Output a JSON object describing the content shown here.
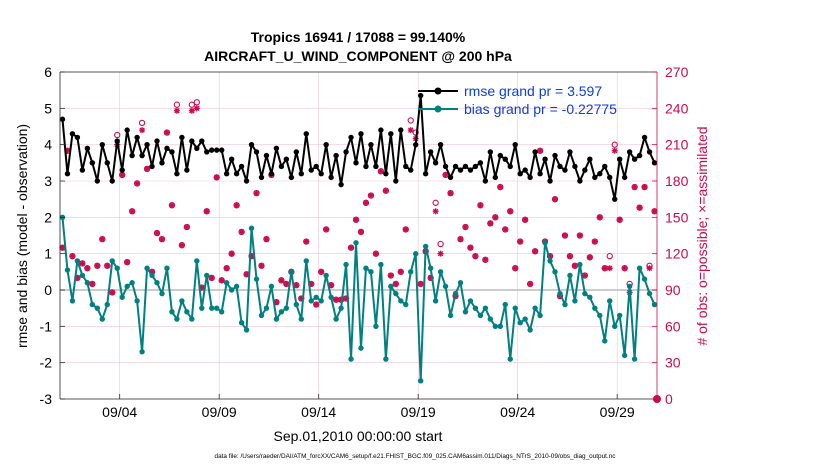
{
  "chart_data": {
    "type": "line",
    "title_line1": "Tropics 16941 / 17088 = 99.140%",
    "title_line2": "AIRCRAFT_U_WIND_COMPONENT @ 200 hPa",
    "xlabel": "Sep.01,2010 00:00:00 start",
    "ylabel_left": "rmse and bias (model - observation)",
    "ylabel_right": "# of obs: o=possible; ×=assimilated",
    "footer": "data file: /Users/raeder/DAI/ATM_forcXX/CAM6_setup/f.e21.FHIST_BGC.f09_025.CAM6assim.011/Diags_NTrS_2010-09/obs_diag_output.nc",
    "xlim": [
      0.5,
      30.5
    ],
    "ylim_left": [
      -3,
      6
    ],
    "ylim_right": [
      0,
      270
    ],
    "x_ticks": [
      3.5,
      8.5,
      13.5,
      18.5,
      23.5,
      28.5
    ],
    "x_tick_labels": [
      "09/04",
      "09/09",
      "09/14",
      "09/19",
      "09/24",
      "09/29"
    ],
    "y_ticks_left": [
      -3,
      -2,
      -1,
      0,
      1,
      2,
      3,
      4,
      5,
      6
    ],
    "y_tick_labels_left": [
      "-3",
      "-2",
      "-1",
      "0",
      "1",
      "2",
      "3",
      "4",
      "5",
      "6"
    ],
    "y_ticks_right": [
      0,
      30,
      60,
      90,
      120,
      150,
      180,
      210,
      240,
      270
    ],
    "y_tick_labels_right": [
      "0",
      "30",
      "60",
      "90",
      "120",
      "150",
      "180",
      "210",
      "240",
      "270"
    ],
    "series": [
      {
        "name": "rmse grand pr = 3.597",
        "color": "#000000",
        "x": [
          0.625,
          0.875,
          1.125,
          1.375,
          1.625,
          1.875,
          2.125,
          2.375,
          2.625,
          2.875,
          3.125,
          3.375,
          3.625,
          3.875,
          4.125,
          4.375,
          4.625,
          4.875,
          5.125,
          5.375,
          5.625,
          5.875,
          6.125,
          6.375,
          6.625,
          6.875,
          7.125,
          7.375,
          7.625,
          7.875,
          8.125,
          8.375,
          8.625,
          8.875,
          9.125,
          9.375,
          9.625,
          9.875,
          10.125,
          10.375,
          10.625,
          10.875,
          11.125,
          11.375,
          11.625,
          11.875,
          12.125,
          12.375,
          12.625,
          12.875,
          13.125,
          13.375,
          13.625,
          13.875,
          14.125,
          14.375,
          14.625,
          14.875,
          15.125,
          15.375,
          15.625,
          15.875,
          16.125,
          16.375,
          16.625,
          16.875,
          17.125,
          17.375,
          17.625,
          17.875,
          18.125,
          18.375,
          18.625,
          18.875,
          19.125,
          19.375,
          19.625,
          19.875,
          20.125,
          20.375,
          20.625,
          20.875,
          21.125,
          21.375,
          21.625,
          21.875,
          22.125,
          22.375,
          22.625,
          22.875,
          23.125,
          23.375,
          23.625,
          23.875,
          24.125,
          24.375,
          24.625,
          24.875,
          25.125,
          25.375,
          25.625,
          25.875,
          26.125,
          26.375,
          26.625,
          26.875,
          27.125,
          27.375,
          27.625,
          27.875,
          28.125,
          28.375,
          28.625,
          28.875,
          29.125,
          29.375,
          29.625,
          29.875,
          30.125,
          30.375
        ],
        "values": [
          4.7,
          3.2,
          4.3,
          4.2,
          3.3,
          3.9,
          3.5,
          3.0,
          4.0,
          3.5,
          3.0,
          4.1,
          3.3,
          4.4,
          3.7,
          4.2,
          3.7,
          4.0,
          3.4,
          4.1,
          3.5,
          3.9,
          3.8,
          3.2,
          4.2,
          3.3,
          4.1,
          3.9,
          4.1,
          3.8,
          3.85,
          3.85,
          3.85,
          3.2,
          3.6,
          3.2,
          3.4,
          3.0,
          4.0,
          3.8,
          3.1,
          3.7,
          3.2,
          3.9,
          3.4,
          3.6,
          3.1,
          3.8,
          3.2,
          4.3,
          3.3,
          3.4,
          3.2,
          4.0,
          3.1,
          3.7,
          2.9,
          3.8,
          4.2,
          3.5,
          4.3,
          3.4,
          4.0,
          3.4,
          4.4,
          3.2,
          4.3,
          3.0,
          4.4,
          3.4,
          3.3,
          4.0,
          5.35,
          3.2,
          3.8,
          3.5,
          4.0,
          3.4,
          3.1,
          3.4,
          3.3,
          3.4,
          3.3,
          3.4,
          3.5,
          3.0,
          3.8,
          3.1,
          3.7,
          3.6,
          3.4,
          4.0,
          3.2,
          3.3,
          3.1,
          3.8,
          3.2,
          3.6,
          3.0,
          3.7,
          3.4,
          3.3,
          3.8,
          3.4,
          3.0,
          3.3,
          3.6,
          3.1,
          3.2,
          3.4,
          3.1,
          2.5,
          3.6,
          3.1,
          3.8,
          3.6,
          3.7,
          4.2,
          3.8,
          3.5
        ]
      },
      {
        "name": "bias grand pr = -0.22775",
        "color": "#008080",
        "x": [
          0.625,
          0.875,
          1.125,
          1.375,
          1.625,
          1.875,
          2.125,
          2.375,
          2.625,
          2.875,
          3.125,
          3.375,
          3.625,
          3.875,
          4.125,
          4.375,
          4.625,
          4.875,
          5.125,
          5.375,
          5.625,
          5.875,
          6.125,
          6.375,
          6.625,
          6.875,
          7.125,
          7.375,
          7.625,
          7.875,
          8.125,
          8.375,
          8.625,
          8.875,
          9.125,
          9.375,
          9.625,
          9.875,
          10.125,
          10.375,
          10.625,
          10.875,
          11.125,
          11.375,
          11.625,
          11.875,
          12.125,
          12.375,
          12.625,
          12.875,
          13.125,
          13.375,
          13.625,
          13.875,
          14.125,
          14.375,
          14.625,
          14.875,
          15.125,
          15.375,
          15.625,
          15.875,
          16.125,
          16.375,
          16.625,
          16.875,
          17.125,
          17.375,
          17.625,
          17.875,
          18.125,
          18.375,
          18.625,
          18.875,
          19.125,
          19.375,
          19.625,
          19.875,
          20.125,
          20.375,
          20.625,
          20.875,
          21.125,
          21.375,
          21.625,
          21.875,
          22.125,
          22.375,
          22.625,
          22.875,
          23.125,
          23.375,
          23.625,
          23.875,
          24.125,
          24.375,
          24.625,
          24.875,
          25.125,
          25.375,
          25.625,
          25.875,
          26.125,
          26.375,
          26.625,
          26.875,
          27.125,
          27.375,
          27.625,
          27.875,
          28.125,
          28.375,
          28.625,
          28.875,
          29.125,
          29.375,
          29.625,
          29.875,
          30.125,
          30.375
        ],
        "values": [
          2.0,
          0.55,
          -0.3,
          0.8,
          0.4,
          0.2,
          -0.4,
          -0.5,
          -0.8,
          -0.4,
          0.8,
          0.6,
          -0.2,
          0.1,
          0.2,
          -0.3,
          -1.7,
          0.6,
          0.4,
          0.2,
          -0.1,
          0.6,
          -0.6,
          -0.8,
          -0.3,
          -0.6,
          -0.8,
          0.8,
          -0.5,
          0.4,
          -0.5,
          -0.5,
          -0.6,
          0.2,
          0.0,
          0.1,
          -0.9,
          -1.1,
          1.7,
          0.3,
          -0.7,
          -0.5,
          0.1,
          -0.8,
          -0.6,
          -0.5,
          0.5,
          -0.4,
          -0.8,
          0.8,
          -0.3,
          -0.2,
          -0.3,
          0.4,
          -0.2,
          -0.8,
          -0.5,
          0.7,
          -1.9,
          1.3,
          -1.6,
          0.6,
          0.5,
          -1.0,
          0.7,
          -1.9,
          0.1,
          -0.1,
          -0.3,
          -0.4,
          0.5,
          1.0,
          -2.5,
          1.2,
          0.6,
          -0.3,
          0.5,
          0.1,
          -0.7,
          -0.1,
          0.2,
          -0.6,
          -0.3,
          -0.5,
          -0.7,
          -0.5,
          -0.8,
          -1.0,
          -1.0,
          -0.4,
          -1.9,
          -0.5,
          -0.9,
          -0.8,
          -1.1,
          -0.5,
          -0.7,
          1.3,
          0.8,
          0.5,
          -0.1,
          -0.4,
          0.4,
          -0.3,
          0.7,
          -0.1,
          -0.2,
          -0.5,
          -0.7,
          -1.4,
          -0.3,
          -1.0,
          -0.7,
          -1.8,
          0.1,
          -1.9,
          0.6,
          0.3,
          -0.1,
          -0.4
        ]
      }
    ],
    "obs_possible": {
      "name": "possible",
      "x": [
        0.625,
        0.875,
        1.125,
        1.375,
        1.625,
        1.875,
        2.125,
        2.375,
        2.625,
        2.875,
        3.125,
        3.375,
        3.625,
        3.875,
        4.125,
        4.375,
        4.625,
        4.875,
        5.125,
        5.375,
        5.625,
        5.875,
        6.125,
        6.375,
        6.625,
        6.875,
        7.125,
        7.375,
        7.625,
        7.875,
        8.125,
        8.375,
        8.625,
        8.875,
        9.125,
        9.375,
        9.625,
        9.875,
        10.125,
        10.375,
        10.625,
        10.875,
        11.125,
        11.375,
        11.625,
        11.875,
        12.125,
        12.375,
        12.625,
        12.875,
        13.125,
        13.375,
        13.625,
        13.875,
        14.125,
        14.375,
        14.625,
        14.875,
        15.125,
        15.375,
        15.625,
        15.875,
        16.125,
        16.375,
        16.625,
        16.875,
        17.125,
        17.375,
        17.625,
        17.875,
        18.125,
        18.375,
        18.625,
        18.875,
        19.125,
        19.375,
        19.625,
        19.875,
        20.125,
        20.375,
        20.625,
        20.875,
        21.125,
        21.375,
        21.625,
        21.875,
        22.125,
        22.375,
        22.625,
        22.875,
        23.125,
        23.375,
        23.625,
        23.875,
        24.125,
        24.375,
        24.625,
        24.875,
        25.125,
        25.375,
        25.625,
        25.875,
        26.125,
        26.375,
        26.625,
        26.875,
        27.125,
        27.375,
        27.625,
        27.875,
        28.125,
        28.375,
        28.625,
        28.875,
        29.125,
        29.375,
        29.625,
        29.875,
        30.125,
        30.375
      ],
      "values": [
        125,
        205,
        118,
        100,
        112,
        108,
        95,
        110,
        132,
        110,
        88,
        218,
        185,
        113,
        155,
        178,
        228,
        190,
        105,
        137,
        132,
        220,
        160,
        243,
        127,
        142,
        243,
        245,
        92,
        155,
        100,
        183,
        98,
        108,
        120,
        160,
        138,
        103,
        118,
        170,
        110,
        132,
        185,
        80,
        98,
        95,
        105,
        94,
        83,
        130,
        95,
        78,
        105,
        140,
        94,
        82,
        82,
        83,
        125,
        148,
        138,
        162,
        168,
        120,
        188,
        172,
        102,
        95,
        105,
        140,
        230,
        220,
        95,
        122,
        100,
        162,
        128,
        185,
        170,
        85,
        132,
        142,
        125,
        118,
        160,
        115,
        145,
        150,
        175,
        140,
        155,
        108,
        130,
        148,
        95,
        122,
        205,
        130,
        118,
        165,
        85,
        135,
        118,
        110,
        135,
        102,
        117,
        130,
        150,
        108,
        118,
        210,
        148,
        108,
        95,
        175,
        158,
        175,
        110,
        155
      ]
    },
    "obs_assimilated": {
      "name": "assimilated",
      "x": [
        0.625,
        0.875,
        1.125,
        1.375,
        1.625,
        1.875,
        2.125,
        2.375,
        2.625,
        2.875,
        3.125,
        3.375,
        3.625,
        3.875,
        4.125,
        4.375,
        4.625,
        4.875,
        5.125,
        5.375,
        5.625,
        5.875,
        6.125,
        6.375,
        6.625,
        6.875,
        7.125,
        7.375,
        7.625,
        7.875,
        8.125,
        8.375,
        8.625,
        8.875,
        9.125,
        9.375,
        9.625,
        9.875,
        10.125,
        10.375,
        10.625,
        10.875,
        11.125,
        11.375,
        11.625,
        11.875,
        12.125,
        12.375,
        12.625,
        12.875,
        13.125,
        13.375,
        13.625,
        13.875,
        14.125,
        14.375,
        14.625,
        14.875,
        15.125,
        15.375,
        15.625,
        15.875,
        16.125,
        16.375,
        16.625,
        16.875,
        17.125,
        17.375,
        17.625,
        17.875,
        18.125,
        18.375,
        18.625,
        18.875,
        19.125,
        19.375,
        19.625,
        19.875,
        20.125,
        20.375,
        20.625,
        20.875,
        21.125,
        21.375,
        21.625,
        21.875,
        22.125,
        22.375,
        22.625,
        22.875,
        23.125,
        23.375,
        23.625,
        23.875,
        24.125,
        24.375,
        24.625,
        24.875,
        25.125,
        25.375,
        25.625,
        25.875,
        26.125,
        26.375,
        26.625,
        26.875,
        27.125,
        27.375,
        27.625,
        27.875,
        28.125,
        28.375,
        28.625,
        28.875,
        29.125,
        29.375,
        29.625,
        29.875,
        30.125,
        30.375
      ],
      "values": [
        125,
        205,
        118,
        100,
        112,
        108,
        95,
        110,
        132,
        110,
        88,
        210,
        185,
        113,
        155,
        178,
        222,
        190,
        105,
        137,
        132,
        220,
        160,
        238,
        127,
        142,
        238,
        240,
        92,
        155,
        100,
        183,
        98,
        108,
        120,
        160,
        138,
        103,
        118,
        170,
        110,
        132,
        185,
        80,
        98,
        95,
        105,
        94,
        83,
        130,
        95,
        78,
        105,
        140,
        94,
        82,
        82,
        83,
        125,
        148,
        138,
        162,
        168,
        120,
        188,
        172,
        102,
        95,
        105,
        140,
        222,
        215,
        95,
        122,
        100,
        155,
        120,
        185,
        170,
        85,
        132,
        142,
        125,
        118,
        160,
        115,
        145,
        150,
        175,
        140,
        155,
        108,
        130,
        148,
        95,
        122,
        205,
        130,
        118,
        165,
        85,
        135,
        118,
        110,
        135,
        102,
        117,
        130,
        150,
        108,
        108,
        205,
        148,
        108,
        88,
        175,
        158,
        175,
        108,
        155
      ]
    },
    "end_marker": {
      "x": 30.5,
      "value": 0
    },
    "colors": {
      "rmse": "#000000",
      "bias": "#008080",
      "obs": "#cc0a4e",
      "legend_text": "#0a3ce6",
      "zero_line": "#bbbbbb",
      "grid": "#efc6d0"
    }
  }
}
